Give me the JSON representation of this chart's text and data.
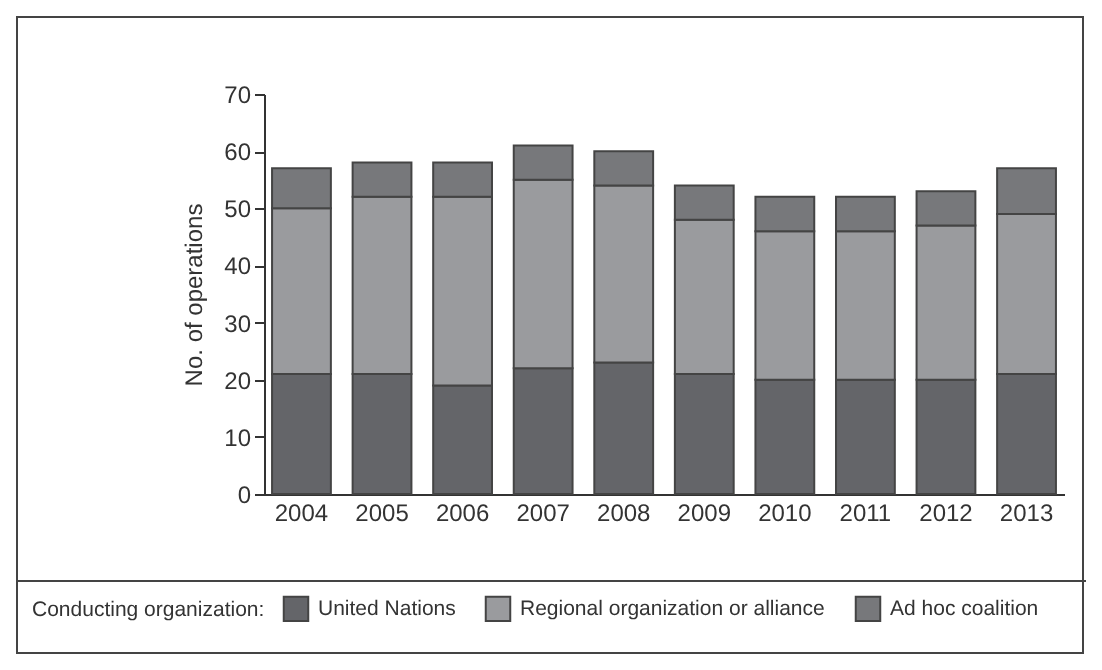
{
  "chart_data": {
    "type": "bar",
    "stacked": true,
    "ylabel": "No. of operations",
    "legend_title": "Conducting organization:",
    "legend": "bottom",
    "categories": [
      "2004",
      "2005",
      "2006",
      "2007",
      "2008",
      "2009",
      "2010",
      "2011",
      "2012",
      "2013"
    ],
    "series": [
      {
        "name": "United Nations",
        "color": "#646569",
        "values": [
          21,
          21,
          19,
          22,
          23,
          21,
          20,
          20,
          20,
          21
        ]
      },
      {
        "name": "Regional organization or alliance",
        "color": "#9a9b9e",
        "values": [
          29,
          31,
          33,
          33,
          31,
          27,
          26,
          26,
          27,
          28
        ]
      },
      {
        "name": "Ad hoc coalition",
        "color": "#77787b",
        "values": [
          7,
          6,
          6,
          6,
          6,
          6,
          6,
          6,
          6,
          8
        ]
      }
    ],
    "ylim": [
      0,
      70
    ],
    "yticks": [
      0,
      10,
      20,
      30,
      40,
      50,
      60,
      70
    ],
    "grid": false
  }
}
